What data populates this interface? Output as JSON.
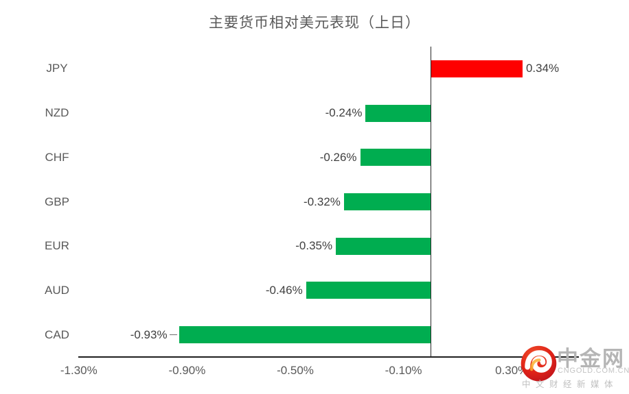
{
  "page": {
    "background": "#ffffff"
  },
  "chart_data": {
    "type": "bar",
    "orientation": "horizontal",
    "title": "主要货币相对美元表现（上日）",
    "categories": [
      "JPY",
      "NZD",
      "CHF",
      "GBP",
      "EUR",
      "AUD",
      "CAD"
    ],
    "values": [
      0.34,
      -0.24,
      -0.26,
      -0.32,
      -0.35,
      -0.46,
      -0.93
    ],
    "value_labels": [
      "0.34%",
      "-0.24%",
      "-0.26%",
      "-0.32%",
      "-0.35%",
      "-0.46%",
      "-0.93%"
    ],
    "x_ticks": [
      {
        "label": "-1.30%",
        "value": -1.3
      },
      {
        "label": "-0.90%",
        "value": -0.9
      },
      {
        "label": "-0.50%",
        "value": -0.5
      },
      {
        "label": "-0.10%",
        "value": -0.1
      },
      {
        "label": "0.30%",
        "value": 0.3
      }
    ],
    "xlim": [
      -1.3,
      0.55
    ],
    "unit": "percent",
    "bar_colors": {
      "positive": "#fe0000",
      "negative": "#00ad50"
    },
    "axis_color": "#1f1f1f",
    "category_label_color": "#595959",
    "value_label_color": "#404040",
    "gridlines": false,
    "legend": "none",
    "leader_lines": [
      "CAD"
    ]
  },
  "watermark": {
    "logo_icon": "cngold-flame-swirl-logo",
    "brand": "中金网",
    "domain": "CNGOLD.COM.CN",
    "tagline": "中文财经新媒体",
    "text_color": "#bcbcbc"
  }
}
